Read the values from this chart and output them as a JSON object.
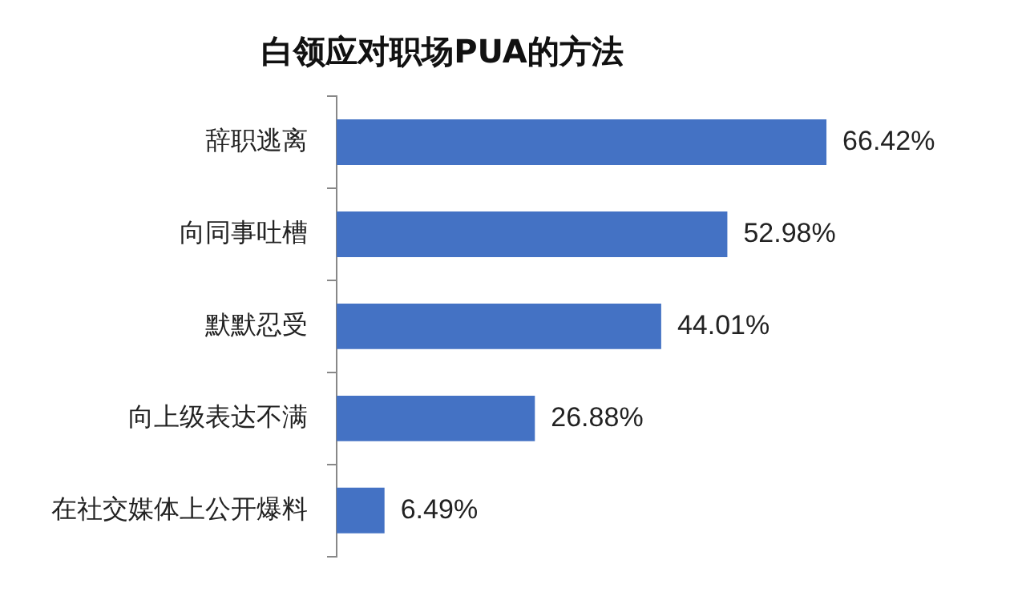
{
  "chart_data": {
    "type": "bar",
    "orientation": "horizontal",
    "title": "白领应对职场PUA的方法",
    "categories": [
      "辞职逃离",
      "向同事吐槽",
      "默默忍受",
      "向上级表达不满",
      "在社交媒体上公开爆料"
    ],
    "values": [
      66.42,
      52.98,
      44.01,
      26.88,
      6.49
    ],
    "value_labels": [
      "66.42%",
      "52.98%",
      "44.01%",
      "26.88%",
      "6.49%"
    ],
    "color": "#4472c4",
    "legend": false,
    "tick_labels": "y"
  }
}
